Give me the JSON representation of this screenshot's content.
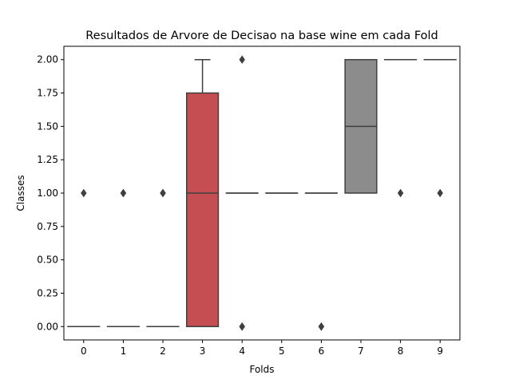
{
  "chart_data": {
    "type": "box",
    "title": "Resultados de Arvore de Decisao na base wine em cada Fold",
    "xlabel": "Folds",
    "ylabel": "Classes",
    "categories": [
      "0",
      "1",
      "2",
      "3",
      "4",
      "5",
      "6",
      "7",
      "8",
      "9"
    ],
    "ylim": [
      -0.1,
      2.1
    ],
    "yticks": [
      0.0,
      0.25,
      0.5,
      0.75,
      1.0,
      1.25,
      1.5,
      1.75,
      2.0
    ],
    "ytick_labels": [
      "0.00",
      "0.25",
      "0.50",
      "0.75",
      "1.00",
      "1.25",
      "1.50",
      "1.75",
      "2.00"
    ],
    "grid": false,
    "boxes": [
      {
        "fold": "0",
        "q1": 0,
        "median": 0,
        "q3": 0,
        "whisker_low": 0,
        "whisker_high": 0,
        "outliers": [
          1
        ],
        "color": "#4c72b0"
      },
      {
        "fold": "1",
        "q1": 0,
        "median": 0,
        "q3": 0,
        "whisker_low": 0,
        "whisker_high": 0,
        "outliers": [
          1,
          1
        ],
        "color": "#dd8452"
      },
      {
        "fold": "2",
        "q1": 0,
        "median": 0,
        "q3": 0,
        "whisker_low": 0,
        "whisker_high": 0,
        "outliers": [
          1,
          1
        ],
        "color": "#55a868"
      },
      {
        "fold": "3",
        "q1": 0,
        "median": 1,
        "q3": 1.75,
        "whisker_low": 0,
        "whisker_high": 2,
        "outliers": [],
        "color": "#c44e52"
      },
      {
        "fold": "4",
        "q1": 1,
        "median": 1,
        "q3": 1,
        "whisker_low": 1,
        "whisker_high": 1,
        "outliers": [
          2,
          0,
          0
        ],
        "color": "#8172b3"
      },
      {
        "fold": "5",
        "q1": 1,
        "median": 1,
        "q3": 1,
        "whisker_low": 1,
        "whisker_high": 1,
        "outliers": [],
        "color": "#937860"
      },
      {
        "fold": "6",
        "q1": 1,
        "median": 1,
        "q3": 1,
        "whisker_low": 1,
        "whisker_high": 1,
        "outliers": [
          0,
          0
        ],
        "color": "#da8bc3"
      },
      {
        "fold": "7",
        "q1": 1,
        "median": 1.5,
        "q3": 2,
        "whisker_low": 1,
        "whisker_high": 2,
        "outliers": [],
        "color": "#8c8c8c"
      },
      {
        "fold": "8",
        "q1": 2,
        "median": 2,
        "q3": 2,
        "whisker_low": 2,
        "whisker_high": 2,
        "outliers": [
          1
        ],
        "color": "#ccb974"
      },
      {
        "fold": "9",
        "q1": 2,
        "median": 2,
        "q3": 2,
        "whisker_low": 2,
        "whisker_high": 2,
        "outliers": [
          1
        ],
        "color": "#64b5cd"
      }
    ]
  }
}
